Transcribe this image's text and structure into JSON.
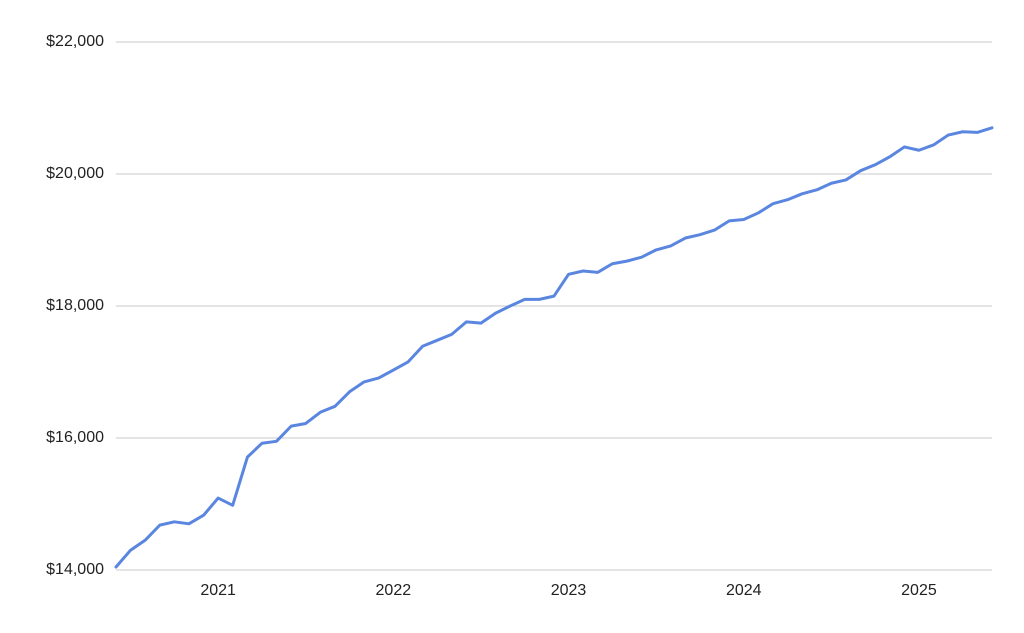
{
  "chart_data": {
    "type": "line",
    "x": [
      2020.417,
      2020.5,
      2020.583,
      2020.667,
      2020.75,
      2020.833,
      2020.917,
      2021,
      2021.083,
      2021.167,
      2021.25,
      2021.333,
      2021.417,
      2021.5,
      2021.583,
      2021.667,
      2021.75,
      2021.833,
      2021.917,
      2022,
      2022.083,
      2022.167,
      2022.25,
      2022.333,
      2022.417,
      2022.5,
      2022.583,
      2022.667,
      2022.75,
      2022.833,
      2022.917,
      2023,
      2023.083,
      2023.167,
      2023.25,
      2023.333,
      2023.417,
      2023.5,
      2023.583,
      2023.667,
      2023.75,
      2023.833,
      2023.917,
      2024,
      2024.083,
      2024.167,
      2024.25,
      2024.333,
      2024.417,
      2024.5,
      2024.583,
      2024.667,
      2024.75,
      2024.833,
      2024.917,
      2025,
      2025.083,
      2025.167,
      2025.25,
      2025.333,
      2025.417
    ],
    "series": [
      {
        "color": "#5a86e0",
        "values": [
          14045,
          14300,
          14450,
          14680,
          14730,
          14700,
          14830,
          15090,
          14980,
          15710,
          15920,
          15950,
          16180,
          16220,
          16390,
          16480,
          16700,
          16850,
          16910,
          17030,
          17150,
          17390,
          17480,
          17570,
          17760,
          17740,
          17890,
          18000,
          18100,
          18100,
          18150,
          18480,
          18530,
          18510,
          18640,
          18680,
          18740,
          18850,
          18910,
          19030,
          19080,
          19150,
          19290,
          19310,
          19410,
          19550,
          19610,
          19700,
          19760,
          19860,
          19910,
          20050,
          20140,
          20260,
          20410,
          20360,
          20440,
          20590,
          20640,
          20630,
          20700
        ]
      }
    ],
    "xlim": [
      2020.417,
      2025.417
    ],
    "xticks": [
      2021,
      2022,
      2023,
      2024,
      2025
    ],
    "ylim": [
      14000,
      22000
    ],
    "yticks": [
      {
        "value": 14000,
        "label": "$14,000"
      },
      {
        "value": 16000,
        "label": "$16,000"
      },
      {
        "value": 18000,
        "label": "$18,000"
      },
      {
        "value": 20000,
        "label": "$20,000"
      },
      {
        "value": 22000,
        "label": "$22,000"
      }
    ],
    "grid": true
  }
}
